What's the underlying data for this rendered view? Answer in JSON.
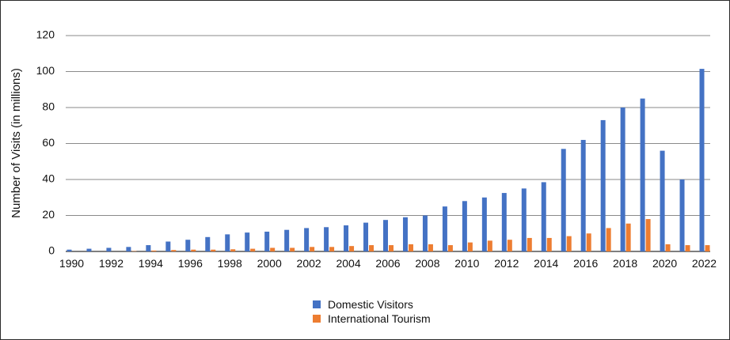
{
  "chart_data": {
    "type": "bar",
    "ylabel": "Number of Visits (in millions)",
    "xlabel": "",
    "ylim": [
      0,
      120
    ],
    "yticks": [
      0,
      20,
      40,
      60,
      80,
      100,
      120
    ],
    "grid": true,
    "legend_position": "bottom-center",
    "categories": [
      "1990",
      "1991",
      "1992",
      "1993",
      "1994",
      "1995",
      "1996",
      "1997",
      "1998",
      "1999",
      "2000",
      "2001",
      "2002",
      "2003",
      "2004",
      "2005",
      "2006",
      "2007",
      "2008",
      "2009",
      "2010",
      "2011",
      "2012",
      "2013",
      "2014",
      "2015",
      "2016",
      "2017",
      "2018",
      "2019",
      "2020",
      "2021",
      "2022"
    ],
    "xtick_labels": [
      "1990",
      "1992",
      "1994",
      "1996",
      "1998",
      "2000",
      "2002",
      "2004",
      "2006",
      "2008",
      "2010",
      "2012",
      "2014",
      "2016",
      "2018",
      "2020",
      "2022"
    ],
    "series": [
      {
        "name": "Domestic Visitors",
        "color": "#4472c4",
        "values": [
          1,
          1.5,
          2,
          2.5,
          3.5,
          5.5,
          6.5,
          8,
          9.5,
          10.5,
          11,
          12,
          13,
          13.5,
          14.5,
          16,
          17.5,
          19,
          20,
          25,
          28,
          30,
          32.5,
          35,
          38.5,
          57,
          62,
          73,
          80,
          85,
          56,
          40,
          101.5
        ]
      },
      {
        "name": "International Tourism",
        "color": "#ed7d31",
        "values": [
          0,
          0,
          0,
          0.2,
          0.5,
          0.8,
          1,
          1,
          1.2,
          1.5,
          2,
          2,
          2.5,
          2.5,
          3,
          3.5,
          3.5,
          4,
          4,
          3.5,
          5,
          6,
          6.5,
          7.5,
          7.5,
          8.5,
          10,
          13,
          15.5,
          18,
          4,
          3.5,
          3.5
        ]
      }
    ]
  }
}
